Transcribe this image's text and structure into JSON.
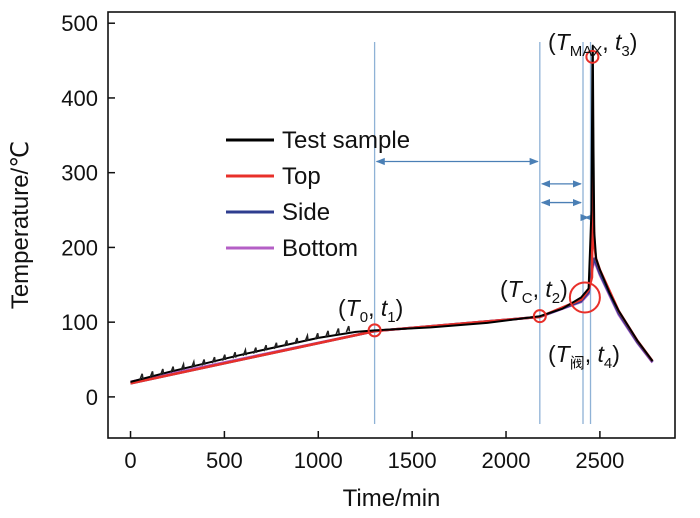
{
  "chart_data": {
    "type": "line",
    "xlabel": "Time/min",
    "ylabel": "Temperature/℃",
    "xlim": [
      -120,
      2900
    ],
    "ylim": [
      -55,
      515
    ],
    "xticks": [
      0,
      500,
      1000,
      1500,
      2000,
      2500
    ],
    "yticks": [
      0,
      100,
      200,
      300,
      400,
      500
    ],
    "legend_position": "upper-left",
    "series": [
      {
        "name": "Test sample",
        "color": "#000000",
        "x": [
          0,
          200,
          400,
          600,
          800,
          1000,
          1200,
          1300,
          1600,
          1900,
          2180,
          2300,
          2400,
          2440,
          2455,
          2460,
          2462,
          2466,
          2470,
          2480,
          2500,
          2550,
          2600,
          2700,
          2780
        ],
        "y": [
          20,
          33,
          45,
          57,
          68,
          79,
          87,
          89,
          93,
          99,
          108,
          118,
          133,
          145,
          250,
          450,
          470,
          330,
          220,
          185,
          170,
          140,
          115,
          75,
          48
        ]
      },
      {
        "name": "Top",
        "color": "#e8302a",
        "x": [
          0,
          1300,
          2180,
          2400,
          2440,
          2458,
          2462,
          2466,
          2472,
          2480,
          2500,
          2600,
          2700,
          2780
        ],
        "y": [
          18,
          88,
          107,
          130,
          143,
          160,
          305,
          240,
          200,
          185,
          170,
          115,
          75,
          48
        ]
      },
      {
        "name": "Side",
        "color": "#2e3d8f",
        "x": [
          0,
          1300,
          2180,
          2400,
          2440,
          2460,
          2470,
          2500,
          2600,
          2700,
          2780
        ],
        "y": [
          18,
          88,
          107,
          128,
          140,
          175,
          185,
          165,
          112,
          73,
          47
        ]
      },
      {
        "name": "Bottom",
        "color": "#b45fc6",
        "x": [
          0,
          1300,
          2180,
          2400,
          2440,
          2460,
          2470,
          2500,
          2600,
          2700,
          2780
        ],
        "y": [
          20,
          88,
          107,
          127,
          138,
          172,
          182,
          163,
          110,
          72,
          46
        ]
      }
    ],
    "vertical_lines": [
      1300,
      2180,
      2410,
      2450
    ],
    "arrows": [
      {
        "x1": 1300,
        "x2": 2180,
        "y": 315
      },
      {
        "x1": 2180,
        "x2": 2410,
        "y": 285
      },
      {
        "x1": 2180,
        "x2": 2410,
        "y": 260
      },
      {
        "x1": 2410,
        "x2": 2450,
        "y": 240
      }
    ],
    "markers": [
      {
        "x": 1300,
        "y": 89,
        "size": "small",
        "color": "#e8302a"
      },
      {
        "x": 2180,
        "y": 108,
        "size": "small",
        "color": "#e8302a"
      },
      {
        "x": 2420,
        "y": 133,
        "size": "large",
        "color": "#e8302a"
      },
      {
        "x": 2460,
        "y": 455,
        "size": "small",
        "color": "#e8302a"
      }
    ],
    "annotations": [
      {
        "id": "t1",
        "symbol": "T",
        "sub": "0",
        "time": "t",
        "time_sub": "1",
        "x": 1300,
        "y": 89
      },
      {
        "id": "t2",
        "symbol": "T",
        "sub": "C",
        "time": "t",
        "time_sub": "2",
        "x": 2180,
        "y": 108
      },
      {
        "id": "t3",
        "symbol": "T",
        "sub": "MAX",
        "time": "t",
        "time_sub": "3",
        "x": 2460,
        "y": 455
      },
      {
        "id": "t4",
        "symbol": "T",
        "sub": "阀",
        "time": "t",
        "time_sub": "4",
        "x": 2420,
        "y": 133
      }
    ]
  }
}
